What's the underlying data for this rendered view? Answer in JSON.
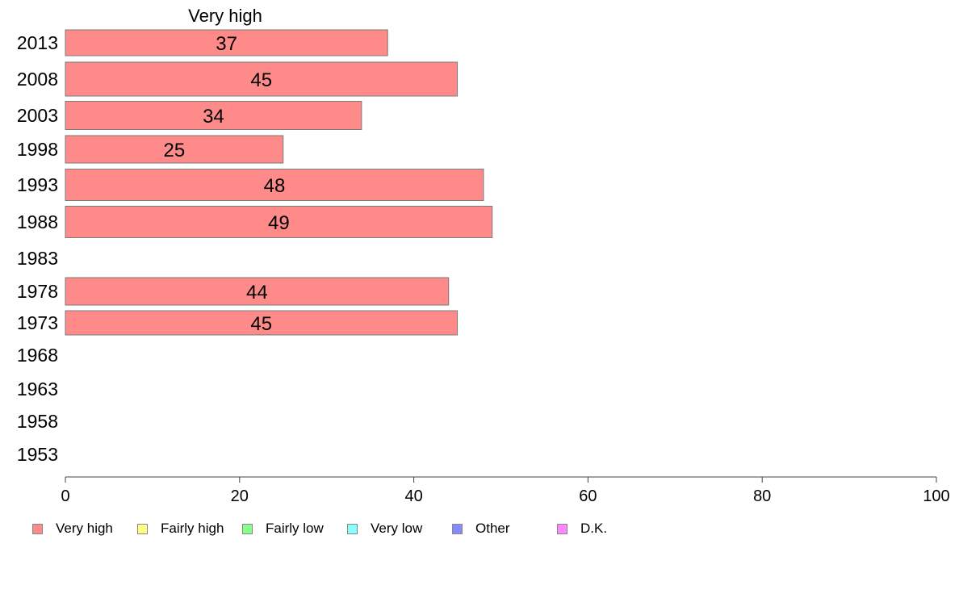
{
  "chart_data": {
    "type": "bar",
    "orientation": "horizontal",
    "title": "Very high",
    "categories": [
      "2013",
      "2008",
      "2003",
      "1998",
      "1993",
      "1988",
      "1983",
      "1978",
      "1973",
      "1968",
      "1963",
      "1958",
      "1953"
    ],
    "series": [
      {
        "name": "Very high",
        "color": "#ff8a8a",
        "values": [
          37,
          45,
          34,
          25,
          48,
          49,
          null,
          44,
          45,
          null,
          null,
          null,
          null
        ]
      }
    ],
    "xlim": [
      0,
      100
    ],
    "xticks": [
      "0",
      "20",
      "40",
      "60",
      "80",
      "100"
    ],
    "grid": false
  },
  "legend": {
    "placement": "bottom",
    "items": [
      {
        "label": "Very high",
        "color": "#ff8a8a"
      },
      {
        "label": "Fairly high",
        "color": "#ffff88"
      },
      {
        "label": "Fairly low",
        "color": "#88ff88"
      },
      {
        "label": "Very low",
        "color": "#88ffff"
      },
      {
        "label": "Other",
        "color": "#8888ff"
      },
      {
        "label": "D.K.",
        "color": "#ff88ff"
      }
    ]
  }
}
